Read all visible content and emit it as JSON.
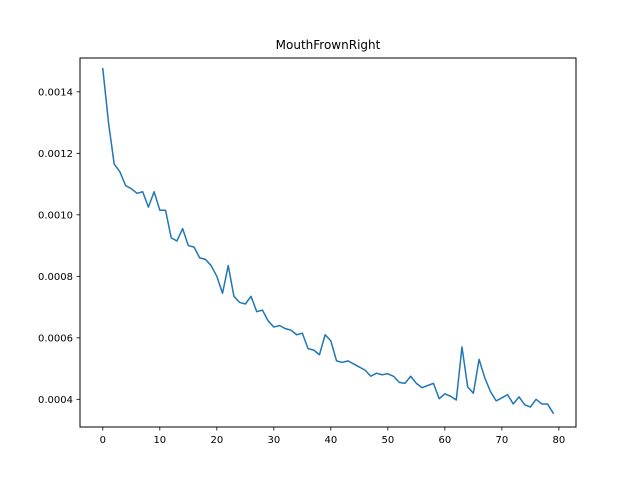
{
  "chart_data": {
    "type": "line",
    "title": "MouthFrownRight",
    "xlabel": "",
    "ylabel": "",
    "xlim": [
      -4,
      83
    ],
    "ylim": [
      0.00031,
      0.00151
    ],
    "grid": false,
    "legend": "none",
    "x_ticks": [
      0,
      10,
      20,
      30,
      40,
      50,
      60,
      70,
      80
    ],
    "y_ticks": [
      0.0004,
      0.0006,
      0.0008,
      0.001,
      0.0012,
      0.0014
    ],
    "x_tick_labels": [
      "0",
      "10",
      "20",
      "30",
      "40",
      "50",
      "60",
      "70",
      "80"
    ],
    "y_tick_labels": [
      "0.0004",
      "0.0006",
      "0.0008",
      "0.0010",
      "0.0012",
      "0.0014"
    ],
    "series": [
      {
        "color": "#1f77b4",
        "x": [
          0,
          1,
          2,
          3,
          4,
          5,
          6,
          7,
          8,
          9,
          10,
          11,
          12,
          13,
          14,
          15,
          16,
          17,
          18,
          19,
          20,
          21,
          22,
          23,
          24,
          25,
          26,
          27,
          28,
          29,
          30,
          31,
          32,
          33,
          34,
          35,
          36,
          37,
          38,
          39,
          40,
          41,
          42,
          43,
          44,
          45,
          46,
          47,
          48,
          49,
          50,
          51,
          52,
          53,
          54,
          55,
          56,
          57,
          58,
          59,
          60,
          61,
          62,
          63,
          64,
          65,
          66,
          67,
          68,
          69,
          70,
          71,
          72,
          73,
          74,
          75,
          76,
          77,
          78,
          79
        ],
        "values": [
          0.001475,
          0.0013,
          0.001165,
          0.00114,
          0.001095,
          0.001085,
          0.00107,
          0.001075,
          0.001025,
          0.001075,
          0.001015,
          0.001015,
          0.000925,
          0.000915,
          0.000955,
          0.0009,
          0.000895,
          0.00086,
          0.000855,
          0.000835,
          0.0008,
          0.000745,
          0.000835,
          0.000735,
          0.000715,
          0.00071,
          0.000735,
          0.000685,
          0.00069,
          0.000655,
          0.000635,
          0.00064,
          0.00063,
          0.000625,
          0.00061,
          0.000615,
          0.000565,
          0.00056,
          0.000545,
          0.00061,
          0.00059,
          0.000525,
          0.00052,
          0.000525,
          0.000515,
          0.000505,
          0.000495,
          0.000475,
          0.000485,
          0.00048,
          0.000483,
          0.000475,
          0.000455,
          0.000452,
          0.000475,
          0.000452,
          0.000438,
          0.000445,
          0.000452,
          0.000402,
          0.000418,
          0.00041,
          0.000398,
          0.00057,
          0.00044,
          0.00042,
          0.00053,
          0.00047,
          0.000425,
          0.000395,
          0.000405,
          0.000415,
          0.000385,
          0.000408,
          0.000382,
          0.000375,
          0.0004,
          0.000385,
          0.000385,
          0.000355
        ]
      }
    ]
  }
}
